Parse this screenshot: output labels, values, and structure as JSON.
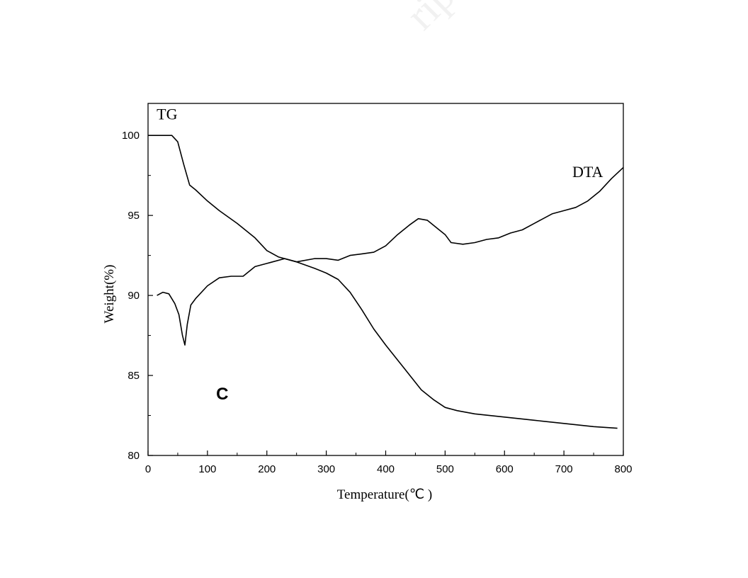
{
  "chart_data": {
    "type": "line",
    "title": "",
    "xlabel": "Temperature(℃ )",
    "ylabel": "Weight(%)",
    "xlim": [
      0,
      800
    ],
    "ylim": [
      80,
      102
    ],
    "x_ticks": [
      0,
      100,
      200,
      300,
      400,
      500,
      600,
      700,
      800
    ],
    "y_ticks": [
      80,
      85,
      90,
      95,
      100
    ],
    "grid": false,
    "legend": "none",
    "panel_label": "C",
    "series": [
      {
        "name": "TG",
        "x": [
          0,
          40,
          50,
          60,
          70,
          80,
          100,
          120,
          150,
          180,
          200,
          220,
          250,
          280,
          300,
          320,
          340,
          360,
          380,
          400,
          430,
          460,
          480,
          500,
          520,
          550,
          600,
          650,
          700,
          750,
          790
        ],
        "y": [
          100,
          100,
          99.6,
          98.2,
          96.9,
          96.6,
          95.9,
          95.3,
          94.5,
          93.6,
          92.8,
          92.4,
          92.1,
          91.7,
          91.4,
          91.0,
          90.2,
          89.1,
          87.9,
          86.9,
          85.5,
          84.1,
          83.5,
          83.0,
          82.8,
          82.6,
          82.4,
          82.2,
          82.0,
          81.8,
          81.7
        ]
      },
      {
        "name": "DTA",
        "x": [
          15,
          25,
          35,
          45,
          52,
          58,
          62,
          66,
          72,
          80,
          100,
          120,
          140,
          160,
          180,
          200,
          230,
          250,
          280,
          300,
          320,
          340,
          360,
          380,
          400,
          420,
          440,
          455,
          470,
          490,
          500,
          510,
          530,
          550,
          570,
          590,
          610,
          630,
          650,
          680,
          700,
          720,
          740,
          760,
          780,
          800
        ],
        "y": [
          90.0,
          90.2,
          90.1,
          89.5,
          88.8,
          87.5,
          86.9,
          88.2,
          89.4,
          89.8,
          90.6,
          91.1,
          91.2,
          91.2,
          91.8,
          92.0,
          92.3,
          92.1,
          92.3,
          92.3,
          92.2,
          92.5,
          92.6,
          92.7,
          93.1,
          93.8,
          94.4,
          94.8,
          94.7,
          94.1,
          93.8,
          93.3,
          93.2,
          93.3,
          93.5,
          93.6,
          93.9,
          94.1,
          94.5,
          95.1,
          95.3,
          95.5,
          95.9,
          96.5,
          97.3,
          98.0
        ]
      }
    ],
    "annotations": [
      {
        "text": "TG",
        "x": 32,
        "y": 101
      },
      {
        "text": "DTA",
        "x": 740,
        "y": 97.4
      },
      {
        "text": "C",
        "x": 125,
        "y": 83.5
      }
    ]
  },
  "watermark_text": "ript"
}
